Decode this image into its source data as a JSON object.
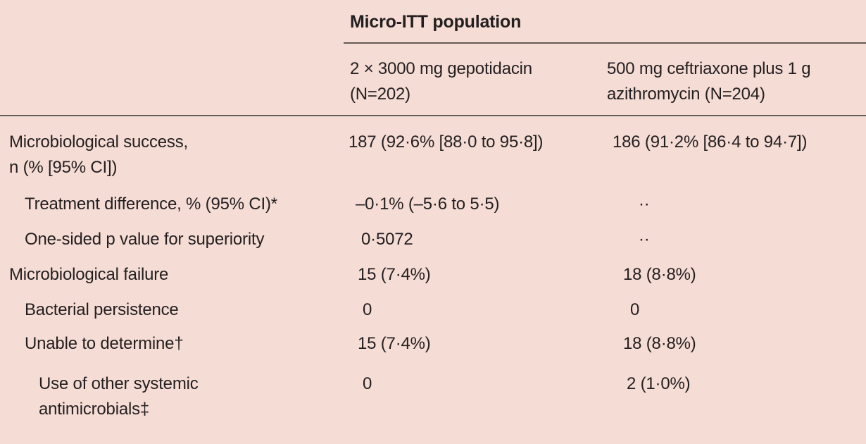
{
  "colors": {
    "background": "#f5dcd5",
    "text": "#231f20",
    "rule": "#665c58"
  },
  "table": {
    "group_header": "Micro-ITT population",
    "columns": [
      {
        "line1": "2 × 3000 mg gepotidacin",
        "line2": "(N=202)"
      },
      {
        "line1": "500 mg ceftriaxone plus 1 g",
        "line2": "azithromycin (N=204)"
      }
    ],
    "rows": [
      {
        "label": "Microbiological success,",
        "label2": "n (% [95% CI])",
        "indent": 0,
        "values": [
          "187 (92·6% [88·0 to 95·8])",
          "186 (91·2% [86·4 to 94·7])"
        ]
      },
      {
        "label": "Treatment difference, % (95% CI)*",
        "indent": 1,
        "values": [
          "–0·1% (–5·6 to 5·5)",
          "··"
        ]
      },
      {
        "label": "One-sided p value for superiority",
        "indent": 1,
        "values": [
          "0·5072",
          "··"
        ]
      },
      {
        "label": "Microbiological failure",
        "indent": 0,
        "values": [
          "15 (7·4%)",
          "18 (8·8%)"
        ]
      },
      {
        "label": "Bacterial persistence",
        "indent": 1,
        "values": [
          "0",
          "0"
        ]
      },
      {
        "label": "Unable to determine†",
        "indent": 1,
        "values": [
          "15 (7·4%)",
          "18 (8·8%)"
        ]
      },
      {
        "label": "Use of other systemic",
        "label2": "antimicrobials‡",
        "indent": 2,
        "values": [
          "0",
          "2 (1·0%)"
        ]
      }
    ]
  }
}
